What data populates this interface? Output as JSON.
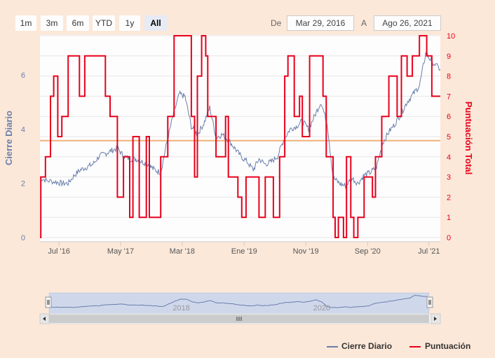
{
  "range_selector": {
    "buttons": [
      "1m",
      "3m",
      "6m",
      "YTD",
      "1y",
      "All"
    ],
    "selected": "All",
    "from_label": "De",
    "to_label": "A",
    "from_value": "Mar 29, 2016",
    "to_value": "Ago 26, 2021"
  },
  "colors": {
    "cierre": "#6a7fab",
    "puntuacion": "#e8001c",
    "plotline": "#f0b27a",
    "plot_bg": "#fdfdfd"
  },
  "chart_data": {
    "type": "line",
    "xlabel": "",
    "x_ticks": [
      "Jul '16",
      "May '17",
      "Mar '18",
      "Ene '19",
      "Nov '19",
      "Sep '20",
      "Jul '21"
    ],
    "x_range": [
      "2016-03-29",
      "2021-08-26"
    ],
    "y_left": {
      "label": "Cierre Diario",
      "ticks": [
        0,
        2,
        4,
        6
      ],
      "range": [
        0,
        7.2
      ]
    },
    "y_right": {
      "label": "Puntuación Total",
      "ticks": [
        0,
        1,
        2,
        3,
        4,
        5,
        6,
        7,
        8,
        9,
        10
      ],
      "range": [
        0,
        10
      ]
    },
    "plot_line": {
      "axis": "right",
      "value": 4.8
    },
    "series": [
      {
        "name": "Cierre Diario",
        "axis": "left",
        "points": [
          [
            "2016-03-29",
            2.2
          ],
          [
            "2016-05-01",
            2.1
          ],
          [
            "2016-06-15",
            2.05
          ],
          [
            "2016-07-15",
            2.0
          ],
          [
            "2016-08-15",
            2.0
          ],
          [
            "2016-09-15",
            2.3
          ],
          [
            "2016-10-15",
            2.5
          ],
          [
            "2016-11-15",
            2.6
          ],
          [
            "2016-12-15",
            2.7
          ],
          [
            "2017-01-15",
            3.0
          ],
          [
            "2017-02-15",
            3.1
          ],
          [
            "2017-03-15",
            3.2
          ],
          [
            "2017-04-15",
            3.3
          ],
          [
            "2017-05-15",
            3.0
          ],
          [
            "2017-06-15",
            2.9
          ],
          [
            "2017-07-15",
            2.9
          ],
          [
            "2017-08-15",
            2.8
          ],
          [
            "2017-09-15",
            2.7
          ],
          [
            "2017-10-15",
            2.5
          ],
          [
            "2017-11-15",
            2.4
          ],
          [
            "2017-12-15",
            3.5
          ],
          [
            "2018-01-15",
            4.5
          ],
          [
            "2018-02-15",
            5.3
          ],
          [
            "2018-03-15",
            5.2
          ],
          [
            "2018-04-15",
            4.1
          ],
          [
            "2018-05-15",
            3.8
          ],
          [
            "2018-06-15",
            4.2
          ],
          [
            "2018-07-15",
            4.8
          ],
          [
            "2018-08-15",
            3.7
          ],
          [
            "2018-09-15",
            3.8
          ],
          [
            "2018-10-15",
            3.6
          ],
          [
            "2018-11-15",
            3.3
          ],
          [
            "2018-12-15",
            3.0
          ],
          [
            "2019-01-15",
            2.8
          ],
          [
            "2019-02-15",
            2.5
          ],
          [
            "2019-03-15",
            2.9
          ],
          [
            "2019-04-15",
            2.7
          ],
          [
            "2019-05-15",
            2.8
          ],
          [
            "2019-06-15",
            3.0
          ],
          [
            "2019-07-15",
            3.6
          ],
          [
            "2019-08-15",
            4.0
          ],
          [
            "2019-09-15",
            4.1
          ],
          [
            "2019-10-15",
            4.3
          ],
          [
            "2019-11-15",
            4.0
          ],
          [
            "2019-12-15",
            4.5
          ],
          [
            "2020-01-15",
            5.0
          ],
          [
            "2020-02-15",
            4.2
          ],
          [
            "2020-03-15",
            2.2
          ],
          [
            "2020-04-15",
            2.0
          ],
          [
            "2020-05-15",
            1.9
          ],
          [
            "2020-06-15",
            2.2
          ],
          [
            "2020-07-15",
            2.0
          ],
          [
            "2020-08-15",
            2.3
          ],
          [
            "2020-09-15",
            2.4
          ],
          [
            "2020-10-15",
            2.6
          ],
          [
            "2020-11-15",
            3.5
          ],
          [
            "2020-12-15",
            3.9
          ],
          [
            "2021-01-15",
            4.2
          ],
          [
            "2021-02-15",
            4.6
          ],
          [
            "2021-03-15",
            5.0
          ],
          [
            "2021-04-15",
            5.3
          ],
          [
            "2021-05-15",
            5.6
          ],
          [
            "2021-06-15",
            6.8
          ],
          [
            "2021-07-15",
            6.5
          ],
          [
            "2021-08-26",
            6.2
          ]
        ]
      },
      {
        "name": "Puntuación",
        "axis": "right",
        "step": true,
        "points": [
          [
            "2016-03-29",
            0
          ],
          [
            "2016-04-02",
            3
          ],
          [
            "2016-04-25",
            4
          ],
          [
            "2016-05-20",
            7
          ],
          [
            "2016-06-05",
            8
          ],
          [
            "2016-06-25",
            5
          ],
          [
            "2016-07-15",
            6
          ],
          [
            "2016-08-15",
            9
          ],
          [
            "2016-10-10",
            7
          ],
          [
            "2016-11-05",
            9
          ],
          [
            "2017-02-15",
            7
          ],
          [
            "2017-03-10",
            6
          ],
          [
            "2017-04-15",
            2
          ],
          [
            "2017-05-15",
            4
          ],
          [
            "2017-06-15",
            1
          ],
          [
            "2017-07-01",
            5
          ],
          [
            "2017-08-01",
            1
          ],
          [
            "2017-09-05",
            5
          ],
          [
            "2017-09-20",
            1
          ],
          [
            "2017-11-15",
            4
          ],
          [
            "2017-12-20",
            6
          ],
          [
            "2018-01-20",
            10
          ],
          [
            "2018-04-15",
            6
          ],
          [
            "2018-05-01",
            3
          ],
          [
            "2018-05-15",
            8
          ],
          [
            "2018-06-05",
            10
          ],
          [
            "2018-06-25",
            9
          ],
          [
            "2018-07-05",
            6
          ],
          [
            "2018-08-15",
            4
          ],
          [
            "2018-10-01",
            6
          ],
          [
            "2018-10-15",
            3
          ],
          [
            "2018-12-01",
            2
          ],
          [
            "2018-12-20",
            1
          ],
          [
            "2019-01-10",
            3
          ],
          [
            "2019-03-15",
            1
          ],
          [
            "2019-04-15",
            3
          ],
          [
            "2019-05-25",
            1
          ],
          [
            "2019-06-25",
            4
          ],
          [
            "2019-07-20",
            8
          ],
          [
            "2019-08-05",
            9
          ],
          [
            "2019-09-05",
            6
          ],
          [
            "2019-10-01",
            7
          ],
          [
            "2019-10-15",
            5
          ],
          [
            "2019-11-20",
            9
          ],
          [
            "2020-01-25",
            7
          ],
          [
            "2020-02-10",
            4
          ],
          [
            "2020-03-15",
            1
          ],
          [
            "2020-03-25",
            0
          ],
          [
            "2020-04-10",
            1
          ],
          [
            "2020-05-05",
            0
          ],
          [
            "2020-05-20",
            4
          ],
          [
            "2020-06-10",
            1
          ],
          [
            "2020-06-25",
            0
          ],
          [
            "2020-07-15",
            1
          ],
          [
            "2020-08-15",
            3
          ],
          [
            "2020-09-25",
            2
          ],
          [
            "2020-10-10",
            4
          ],
          [
            "2020-11-10",
            6
          ],
          [
            "2020-12-15",
            8
          ],
          [
            "2021-01-25",
            6
          ],
          [
            "2021-02-15",
            9
          ],
          [
            "2021-03-15",
            8
          ],
          [
            "2021-04-10",
            9
          ],
          [
            "2021-05-15",
            10
          ],
          [
            "2021-06-20",
            9
          ],
          [
            "2021-07-15",
            7
          ],
          [
            "2021-08-26",
            7
          ]
        ]
      }
    ]
  },
  "navigator": {
    "year_labels": [
      "2018",
      "2020"
    ]
  },
  "legend": {
    "items": [
      "Cierre Diario",
      "Puntuación"
    ]
  }
}
